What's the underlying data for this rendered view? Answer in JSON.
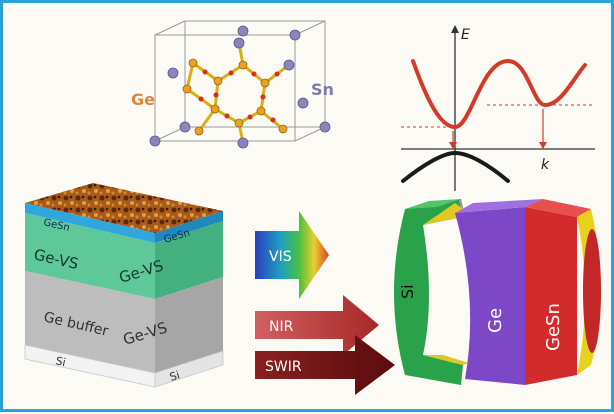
{
  "crystal": {
    "label_ge": "Ge",
    "label_sn": "Sn",
    "color_ge": "#d88a3a",
    "color_sn": "#7e78ad"
  },
  "band_diagram": {
    "axis_energy": "E",
    "axis_momentum": "k",
    "conduction_color": "#d23a2a",
    "valence_color": "#1a1a1a"
  },
  "layer_stack": {
    "layers": [
      {
        "left": "GeSn",
        "right": "GeSn"
      },
      {
        "left": "Ge-VS",
        "right": "Ge-VS"
      },
      {
        "left": "Ge buffer",
        "right": "Ge-VS"
      },
      {
        "left": "Si",
        "right": "Si"
      }
    ]
  },
  "light_arrows": [
    {
      "label": "VIS"
    },
    {
      "label": "NIR"
    },
    {
      "label": "SWIR"
    }
  ],
  "detector": {
    "label_si": "Si",
    "label_ge": "Ge",
    "label_gesn": "GeSn"
  },
  "colors": {
    "frame": "#2aa4d6",
    "gesn_layer": "#2fa6dc",
    "ge_vs_layer": "#5ec89a",
    "buffer_layer": "#b8b8b8"
  }
}
